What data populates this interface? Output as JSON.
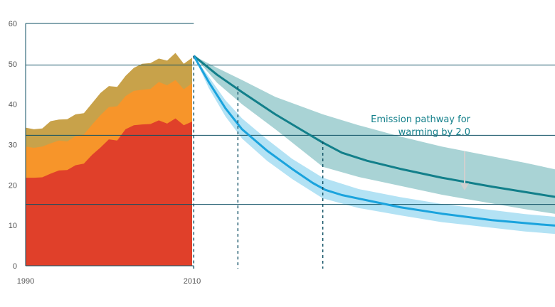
{
  "chart_data": {
    "type": "area",
    "title": "",
    "xlabel": "",
    "ylabel": "",
    "ylim": [
      0,
      60
    ],
    "yticks": [
      0,
      10,
      20,
      30,
      40,
      50,
      60
    ],
    "x_tick_labels": [
      "1990",
      "2010"
    ],
    "historical": {
      "x": [
        1990,
        1991,
        1992,
        1993,
        1994,
        1995,
        1996,
        1997,
        1998,
        1999,
        2000,
        2001,
        2002,
        2003,
        2004,
        2005,
        2006,
        2007,
        2008,
        2009,
        2010
      ],
      "series": [
        {
          "values": [
            21.8,
            21.8,
            21.9,
            22.8,
            23.6,
            23.7,
            24.9,
            25.3,
            27.5,
            29.3,
            31.3,
            31.0,
            33.8,
            34.8,
            35.0,
            35.1,
            36.0,
            35.2,
            36.5,
            34.8,
            35.7
          ],
          "color": "#e0402a"
        },
        {
          "values": [
            29.5,
            29.2,
            29.5,
            30.3,
            31.0,
            30.8,
            32.1,
            32.5,
            35.0,
            37.3,
            39.3,
            39.5,
            42.0,
            43.3,
            43.6,
            43.8,
            45.5,
            44.7,
            46.0,
            43.7,
            45.2
          ],
          "color": "#f7952a"
        },
        {
          "values": [
            34.2,
            33.8,
            34.0,
            35.8,
            36.2,
            36.3,
            37.5,
            37.8,
            40.3,
            42.8,
            44.5,
            44.3,
            47.0,
            49.0,
            50.0,
            50.2,
            51.3,
            50.8,
            52.7,
            50.0,
            51.5
          ],
          "color": "#c8a24a"
        }
      ]
    },
    "projection": {
      "start": {
        "x": 2010.2,
        "y": 52.0
      },
      "dark_pathway": {
        "color": "#127f8a",
        "band_color": "#a9d3d5",
        "line": [
          [
            2010.2,
            52.0
          ],
          [
            2013,
            47.3
          ],
          [
            2016,
            43.0
          ],
          [
            2020,
            37.5
          ],
          [
            2023,
            33.8
          ],
          [
            2025.7,
            30.5
          ],
          [
            2028,
            28.0
          ],
          [
            2031,
            26.0
          ],
          [
            2035,
            24.0
          ],
          [
            2040,
            21.8
          ],
          [
            2046,
            19.6
          ],
          [
            2052,
            17.6
          ],
          [
            2058,
            15.6
          ],
          [
            2064,
            13.6
          ],
          [
            2070,
            11.6
          ]
        ],
        "upper": [
          [
            2010.2,
            52.0
          ],
          [
            2013,
            49.0
          ],
          [
            2016,
            46.0
          ],
          [
            2020,
            41.8
          ],
          [
            2025.7,
            37.5
          ],
          [
            2030,
            34.8
          ],
          [
            2035,
            32.0
          ],
          [
            2040,
            29.5
          ],
          [
            2050,
            25.5
          ],
          [
            2060,
            21.0
          ],
          [
            2070,
            16.5
          ]
        ],
        "lower": [
          [
            2010.2,
            52.0
          ],
          [
            2013,
            45.3
          ],
          [
            2016,
            40.0
          ],
          [
            2020,
            33.8
          ],
          [
            2025.7,
            24.5
          ],
          [
            2030,
            22.0
          ],
          [
            2035,
            19.8
          ],
          [
            2040,
            17.6
          ],
          [
            2050,
            14.0
          ],
          [
            2060,
            10.8
          ],
          [
            2070,
            7.0
          ]
        ]
      },
      "light_pathway": {
        "color": "#1aa3dd",
        "band_color": "#b3e2f4",
        "line": [
          [
            2010.2,
            52.0
          ],
          [
            2012,
            45.5
          ],
          [
            2014,
            39.0
          ],
          [
            2016,
            33.8
          ],
          [
            2019,
            28.5
          ],
          [
            2022,
            24.0
          ],
          [
            2024.5,
            20.5
          ],
          [
            2026,
            18.8
          ],
          [
            2028,
            17.5
          ],
          [
            2031,
            16.2
          ],
          [
            2035,
            14.5
          ],
          [
            2040,
            12.9
          ],
          [
            2046,
            11.3
          ],
          [
            2052,
            10.2
          ],
          [
            2058,
            9.3
          ],
          [
            2064,
            8.5
          ],
          [
            2070,
            7.7
          ]
        ],
        "upper": [
          [
            2010.2,
            52.0
          ],
          [
            2012,
            46.8
          ],
          [
            2014,
            41.0
          ],
          [
            2016,
            36.5
          ],
          [
            2019,
            31.3
          ],
          [
            2022,
            26.5
          ],
          [
            2025.7,
            21.8
          ],
          [
            2030,
            19.0
          ],
          [
            2035,
            17.0
          ],
          [
            2040,
            15.3
          ],
          [
            2050,
            12.8
          ],
          [
            2060,
            11.0
          ],
          [
            2070,
            9.7
          ]
        ],
        "lower": [
          [
            2010.2,
            52.0
          ],
          [
            2012,
            44.0
          ],
          [
            2014,
            37.0
          ],
          [
            2016,
            31.5
          ],
          [
            2019,
            26.0
          ],
          [
            2022,
            21.5
          ],
          [
            2025.7,
            16.7
          ],
          [
            2030,
            14.3
          ],
          [
            2035,
            12.5
          ],
          [
            2040,
            10.8
          ],
          [
            2050,
            8.5
          ],
          [
            2060,
            6.8
          ],
          [
            2070,
            5.0
          ]
        ]
      }
    },
    "horizontal_lines": [
      49.7,
      32.3,
      15.2
    ],
    "dashed_markers": [
      {
        "x": 2010.2,
        "top": 52.0
      },
      {
        "x": 2015.5,
        "top": 44.5
      },
      {
        "x": 2025.7,
        "top": 30.8
      },
      {
        "x": 2070.0,
        "top": 14.5
      }
    ],
    "annotation": {
      "line1": "Emission pathway for",
      "line2": "warming by 2.0",
      "color": "#127f8a",
      "arrow_color": "#d0d0d0"
    }
  }
}
